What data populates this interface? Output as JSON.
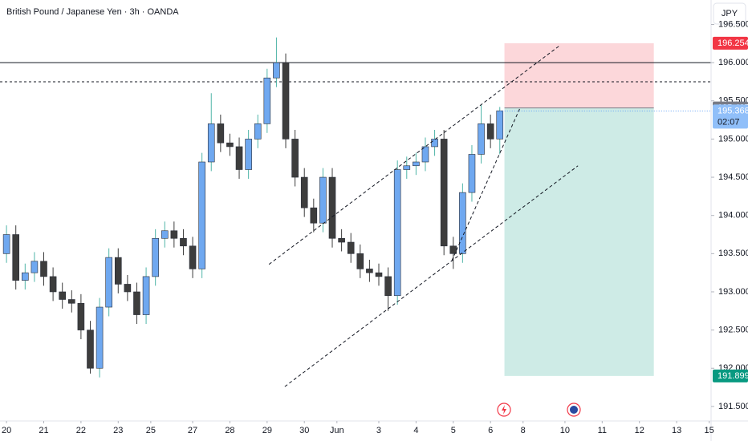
{
  "chart_data": {
    "type": "candlestick",
    "title": "British Pound / Japanese Yen · 3h · OANDA",
    "currency": "JPY",
    "up_color": "#6fa8f0",
    "down_color": "#3d3d3d",
    "xlim": [
      -1.4,
      151.4
    ],
    "ylim": [
      191.31,
      196.82
    ],
    "xticks": [
      {
        "value": 0,
        "label": "20"
      },
      {
        "value": 8,
        "label": "21"
      },
      {
        "value": 16,
        "label": "22"
      },
      {
        "value": 24,
        "label": "23"
      },
      {
        "value": 31,
        "label": "25"
      },
      {
        "value": 40,
        "label": "27"
      },
      {
        "value": 48,
        "label": "28"
      },
      {
        "value": 56,
        "label": "29"
      },
      {
        "value": 64,
        "label": "30"
      },
      {
        "value": 71,
        "label": "Jun"
      },
      {
        "value": 80,
        "label": "3"
      },
      {
        "value": 88,
        "label": "4"
      },
      {
        "value": 96,
        "label": "5"
      },
      {
        "value": 104,
        "label": "6"
      },
      {
        "value": 111,
        "label": "8"
      },
      {
        "value": 120,
        "label": "10"
      },
      {
        "value": 128,
        "label": "11"
      },
      {
        "value": 136,
        "label": "12"
      },
      {
        "value": 144,
        "label": "13"
      },
      {
        "value": 151,
        "label": "15"
      }
    ],
    "yticks": [
      {
        "value": 191.5,
        "label": "191.500"
      },
      {
        "value": 192,
        "label": "192.000"
      },
      {
        "value": 192.5,
        "label": "192.500"
      },
      {
        "value": 193,
        "label": "193.000"
      },
      {
        "value": 193.5,
        "label": "193.500"
      },
      {
        "value": 194,
        "label": "194.000"
      },
      {
        "value": 194.5,
        "label": "194.500"
      },
      {
        "value": 195,
        "label": "195.000"
      },
      {
        "value": 195.5,
        "label": "195.500"
      },
      {
        "value": 196,
        "label": "196.000"
      },
      {
        "value": 196.5,
        "label": "196.500"
      }
    ],
    "x": [
      0,
      2,
      4,
      6,
      8,
      10,
      12,
      14,
      16,
      18,
      20,
      22,
      24,
      26,
      28,
      30,
      32,
      34,
      36,
      38,
      40,
      42,
      44,
      46,
      48,
      50,
      52,
      54,
      56,
      58,
      60,
      62,
      64,
      66,
      68,
      70,
      72,
      74,
      76,
      78,
      80,
      82,
      84,
      86,
      88,
      90,
      92,
      94,
      96,
      98,
      100,
      102,
      104,
      106
    ],
    "open": [
      193.5,
      193.75,
      193.15,
      193.25,
      193.4,
      193.2,
      193.0,
      192.9,
      192.85,
      192.5,
      192.0,
      192.8,
      193.45,
      193.1,
      193.0,
      192.7,
      193.2,
      193.7,
      193.8,
      193.7,
      193.6,
      193.3,
      194.7,
      195.2,
      194.95,
      194.9,
      194.6,
      195.0,
      195.2,
      195.8,
      196.0,
      195.0,
      194.5,
      194.1,
      193.9,
      194.5,
      193.7,
      193.65,
      193.5,
      193.3,
      193.25,
      193.2,
      192.95,
      194.6,
      194.65,
      194.7,
      194.9,
      195.0,
      193.6,
      193.5,
      194.3,
      194.8,
      195.2,
      195.0
    ],
    "high": [
      193.87,
      193.87,
      193.37,
      193.52,
      193.52,
      193.32,
      193.12,
      193.02,
      192.97,
      192.62,
      192.92,
      193.57,
      193.57,
      193.22,
      193.12,
      193.32,
      193.82,
      193.92,
      193.92,
      193.82,
      193.72,
      194.82,
      195.6,
      195.32,
      195.07,
      195.02,
      195.12,
      195.32,
      195.92,
      196.33,
      196.12,
      195.12,
      194.62,
      194.22,
      194.62,
      194.62,
      193.82,
      193.77,
      193.62,
      193.42,
      193.37,
      193.32,
      194.72,
      194.77,
      194.82,
      195.02,
      195.12,
      195.12,
      193.72,
      194.42,
      194.92,
      195.45,
      195.32,
      195.42
    ],
    "low": [
      193.38,
      193.03,
      193.03,
      193.13,
      193.08,
      192.88,
      192.78,
      192.73,
      192.38,
      191.93,
      191.88,
      192.68,
      192.98,
      192.88,
      192.58,
      192.58,
      193.08,
      193.58,
      193.58,
      193.48,
      193.18,
      193.18,
      194.58,
      194.83,
      194.78,
      194.48,
      194.48,
      194.88,
      195.08,
      195.68,
      194.88,
      194.38,
      193.98,
      193.78,
      193.78,
      193.58,
      193.53,
      193.38,
      193.18,
      193.13,
      193.08,
      192.75,
      192.83,
      194.48,
      194.53,
      194.58,
      194.78,
      193.48,
      193.3,
      193.38,
      194.18,
      194.68,
      194.88,
      194.8
    ],
    "close": [
      193.75,
      193.15,
      193.25,
      193.4,
      193.2,
      193.0,
      192.9,
      192.85,
      192.5,
      192.0,
      192.8,
      193.45,
      193.1,
      193.0,
      192.7,
      193.2,
      193.7,
      193.8,
      193.7,
      193.6,
      193.3,
      194.7,
      195.2,
      194.95,
      194.9,
      194.6,
      195.0,
      195.2,
      195.8,
      196.0,
      195.0,
      194.5,
      194.1,
      193.9,
      194.5,
      193.7,
      193.65,
      193.5,
      193.3,
      193.25,
      193.2,
      192.95,
      194.6,
      194.65,
      194.7,
      194.9,
      195.0,
      193.6,
      193.5,
      194.3,
      194.8,
      195.2,
      195.0,
      195.37
    ],
    "hlines": [
      {
        "value": 196.0,
        "style": "solid"
      },
      {
        "value": 195.75,
        "style": "dashed"
      }
    ],
    "trendlines": [
      {
        "x": [
          56.4,
          118.8
        ],
        "y": [
          193.36,
          196.22
        ]
      },
      {
        "x": [
          59.8,
          122.8
        ],
        "y": [
          191.76,
          194.65
        ]
      },
      {
        "x": [
          95.7,
          110.3
        ],
        "y": [
          193.41,
          195.4
        ]
      }
    ],
    "position": {
      "entry": 195.407,
      "stop": 196.254,
      "target": 191.899,
      "x_start": 107,
      "x_end": 139.1
    },
    "last_price": 195.368,
    "countdown": "02:07"
  }
}
